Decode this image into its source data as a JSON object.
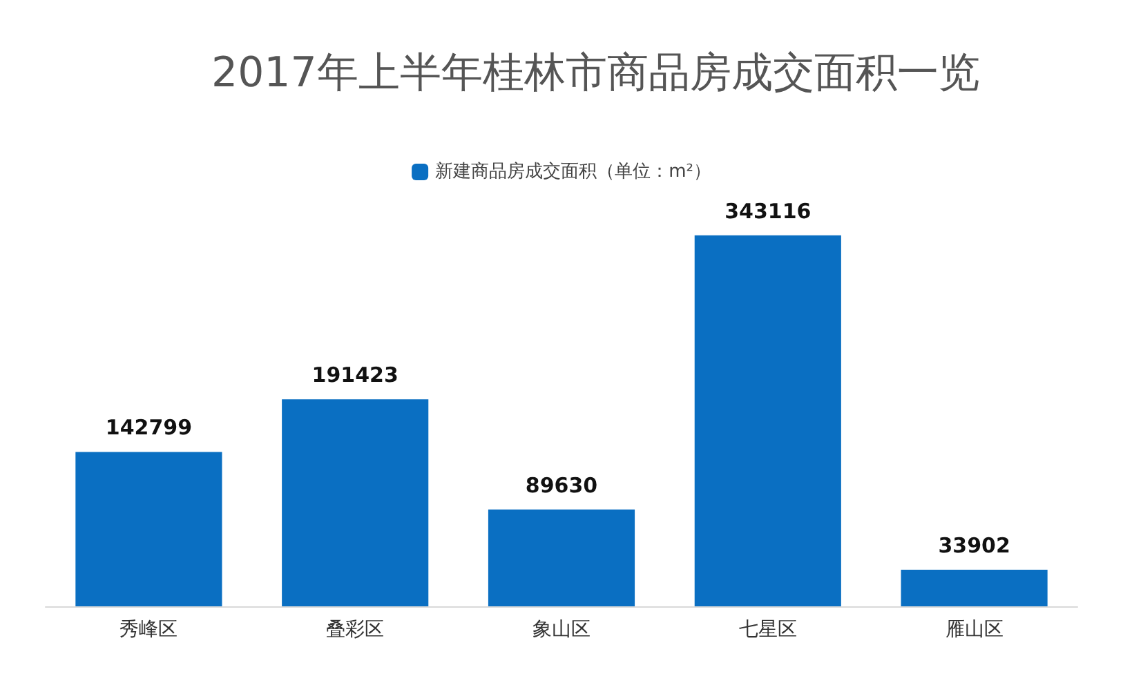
{
  "chart_data": {
    "type": "bar",
    "title": "2017年上半年桂林市商品房成交面积一览",
    "categories": [
      "秀峰区",
      "叠彩区",
      "象山区",
      "七星区",
      "雁山区"
    ],
    "series": [
      {
        "name": "新建商品房成交面积（单位：m²）",
        "color": "#0a6fc2",
        "values": [
          142799,
          191423,
          89630,
          343116,
          33902
        ]
      }
    ],
    "data_labels": true,
    "legend": "top"
  }
}
